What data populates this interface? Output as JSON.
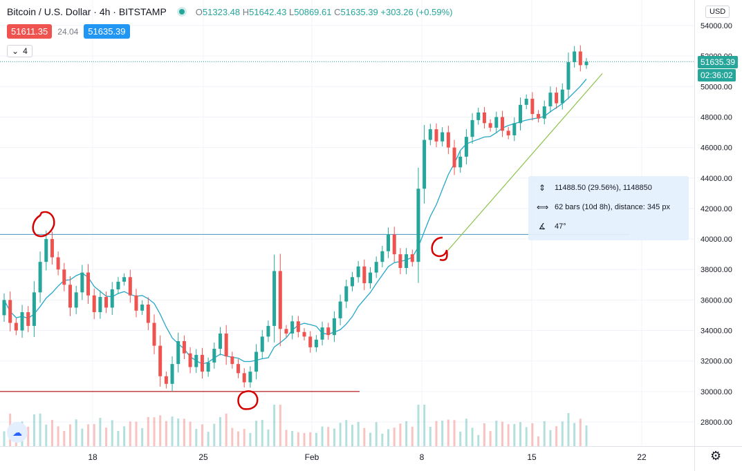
{
  "header": {
    "symbol": "Bitcoin / U.S. Dollar · 4h · BITSTAMP",
    "o_label": "O",
    "o": "51323.48",
    "h_label": "H",
    "h": "51642.43",
    "l_label": "L",
    "l": "50869.61",
    "c_label": "C",
    "c": "51635.39",
    "change": "+303.26 (+0.59%)"
  },
  "bid_ask": {
    "bid": "51611.35",
    "spread": "24.04",
    "ask": "51635.39"
  },
  "indicators_toggle": {
    "count": "4",
    "icon": "chevron-down-icon"
  },
  "currency_button": "USD",
  "last_price_label": "51635.39",
  "countdown_label": "02:36:02",
  "measure_tool": {
    "price_range": "11488.50 (29.56%), 1148850",
    "bars_range": "62 bars (10d 8h), distance: 345 px",
    "angle": "47°"
  },
  "colors": {
    "up": "#26a69a",
    "down": "#ef5350",
    "ma": "#26a6c9",
    "resistance_line": "#5b9fc8",
    "support_line": "#b71c1c",
    "trend_line": "#8bc34a",
    "annotation": "#d50000",
    "grid": "#f0f3fa"
  },
  "chart_data": {
    "type": "candlestick",
    "y_ticks": [
      "54000.00",
      "52000.00",
      "50000.00",
      "48000.00",
      "46000.00",
      "44000.00",
      "42000.00",
      "40000.00",
      "38000.00",
      "36000.00",
      "34000.00",
      "32000.00",
      "30000.00",
      "28000.00"
    ],
    "x_ticks": [
      "18",
      "25",
      "Feb",
      "8",
      "15",
      "22"
    ],
    "ylim": [
      26500,
      55000
    ],
    "candles": [
      {
        "o": 35000,
        "c": 36000
      },
      {
        "o": 36000,
        "c": 34500
      },
      {
        "o": 34500,
        "c": 34000
      },
      {
        "o": 34000,
        "c": 35200
      },
      {
        "o": 35200,
        "c": 34300
      },
      {
        "o": 34300,
        "c": 36500
      },
      {
        "o": 36500,
        "c": 38500
      },
      {
        "o": 38500,
        "c": 40000
      },
      {
        "o": 40000,
        "c": 38800
      },
      {
        "o": 38800,
        "c": 38000
      },
      {
        "o": 38000,
        "c": 37000
      },
      {
        "o": 37000,
        "c": 35500
      },
      {
        "o": 35500,
        "c": 36500
      },
      {
        "o": 36500,
        "c": 37800
      },
      {
        "o": 37800,
        "c": 36300
      },
      {
        "o": 36300,
        "c": 35200
      },
      {
        "o": 35200,
        "c": 36200
      },
      {
        "o": 36200,
        "c": 35500
      },
      {
        "o": 35500,
        "c": 36700
      },
      {
        "o": 36700,
        "c": 37200
      },
      {
        "o": 37200,
        "c": 37500
      },
      {
        "o": 37500,
        "c": 36300
      },
      {
        "o": 36300,
        "c": 35300
      },
      {
        "o": 35300,
        "c": 35700
      },
      {
        "o": 35700,
        "c": 34500
      },
      {
        "o": 34500,
        "c": 33000
      },
      {
        "o": 33000,
        "c": 31000
      },
      {
        "o": 31000,
        "c": 30500
      },
      {
        "o": 30500,
        "c": 31800
      },
      {
        "o": 31800,
        "c": 33300
      },
      {
        "o": 33300,
        "c": 32500
      },
      {
        "o": 32500,
        "c": 31600
      },
      {
        "o": 31600,
        "c": 32400
      },
      {
        "o": 32400,
        "c": 31300
      },
      {
        "o": 31300,
        "c": 31900
      },
      {
        "o": 31900,
        "c": 32800
      },
      {
        "o": 32800,
        "c": 33800
      },
      {
        "o": 33800,
        "c": 32300
      },
      {
        "o": 32300,
        "c": 31800
      },
      {
        "o": 31800,
        "c": 31200
      },
      {
        "o": 31200,
        "c": 30600
      },
      {
        "o": 30600,
        "c": 31300
      },
      {
        "o": 31300,
        "c": 32600
      },
      {
        "o": 32600,
        "c": 33600
      },
      {
        "o": 33600,
        "c": 34300
      },
      {
        "o": 34300,
        "c": 37900
      },
      {
        "o": 37900,
        "c": 34100
      },
      {
        "o": 34100,
        "c": 33800
      },
      {
        "o": 33800,
        "c": 34600
      },
      {
        "o": 34600,
        "c": 33900
      },
      {
        "o": 33900,
        "c": 33600
      },
      {
        "o": 33600,
        "c": 32900
      },
      {
        "o": 32900,
        "c": 33400
      },
      {
        "o": 33400,
        "c": 34200
      },
      {
        "o": 34200,
        "c": 33700
      },
      {
        "o": 33700,
        "c": 34800
      },
      {
        "o": 34800,
        "c": 35900
      },
      {
        "o": 35900,
        "c": 36900
      },
      {
        "o": 36900,
        "c": 37500
      },
      {
        "o": 37500,
        "c": 38200
      },
      {
        "o": 38200,
        "c": 37100
      },
      {
        "o": 37100,
        "c": 37800
      },
      {
        "o": 37800,
        "c": 38500
      },
      {
        "o": 38500,
        "c": 39200
      },
      {
        "o": 39200,
        "c": 40300
      },
      {
        "o": 40300,
        "c": 39000
      },
      {
        "o": 39000,
        "c": 38100
      },
      {
        "o": 38100,
        "c": 39000
      },
      {
        "o": 39000,
        "c": 38500
      },
      {
        "o": 38500,
        "c": 43300
      },
      {
        "o": 43300,
        "c": 46500
      },
      {
        "o": 46500,
        "c": 47200
      },
      {
        "o": 47200,
        "c": 46400
      },
      {
        "o": 46400,
        "c": 47000
      },
      {
        "o": 47000,
        "c": 46000
      },
      {
        "o": 46000,
        "c": 44700
      },
      {
        "o": 44700,
        "c": 45400
      },
      {
        "o": 45400,
        "c": 46700
      },
      {
        "o": 46700,
        "c": 47800
      },
      {
        "o": 47800,
        "c": 48300
      },
      {
        "o": 48300,
        "c": 47600
      },
      {
        "o": 47600,
        "c": 47300
      },
      {
        "o": 47300,
        "c": 48000
      },
      {
        "o": 48000,
        "c": 47100
      },
      {
        "o": 47100,
        "c": 46800
      },
      {
        "o": 46800,
        "c": 47600
      },
      {
        "o": 47600,
        "c": 48800
      },
      {
        "o": 48800,
        "c": 49200
      },
      {
        "o": 49200,
        "c": 48200
      },
      {
        "o": 48200,
        "c": 47900
      },
      {
        "o": 47900,
        "c": 48700
      },
      {
        "o": 48700,
        "c": 49600
      },
      {
        "o": 49600,
        "c": 48900
      },
      {
        "o": 48900,
        "c": 49800
      },
      {
        "o": 49800,
        "c": 51600
      },
      {
        "o": 51600,
        "c": 52300
      },
      {
        "o": 52300,
        "c": 51400
      },
      {
        "o": 51400,
        "c": 51635
      }
    ],
    "annotations": {
      "resistance_price": 40300,
      "support_price": 30000,
      "trend_from_price": 39500,
      "trend_to_price": 50400
    }
  }
}
